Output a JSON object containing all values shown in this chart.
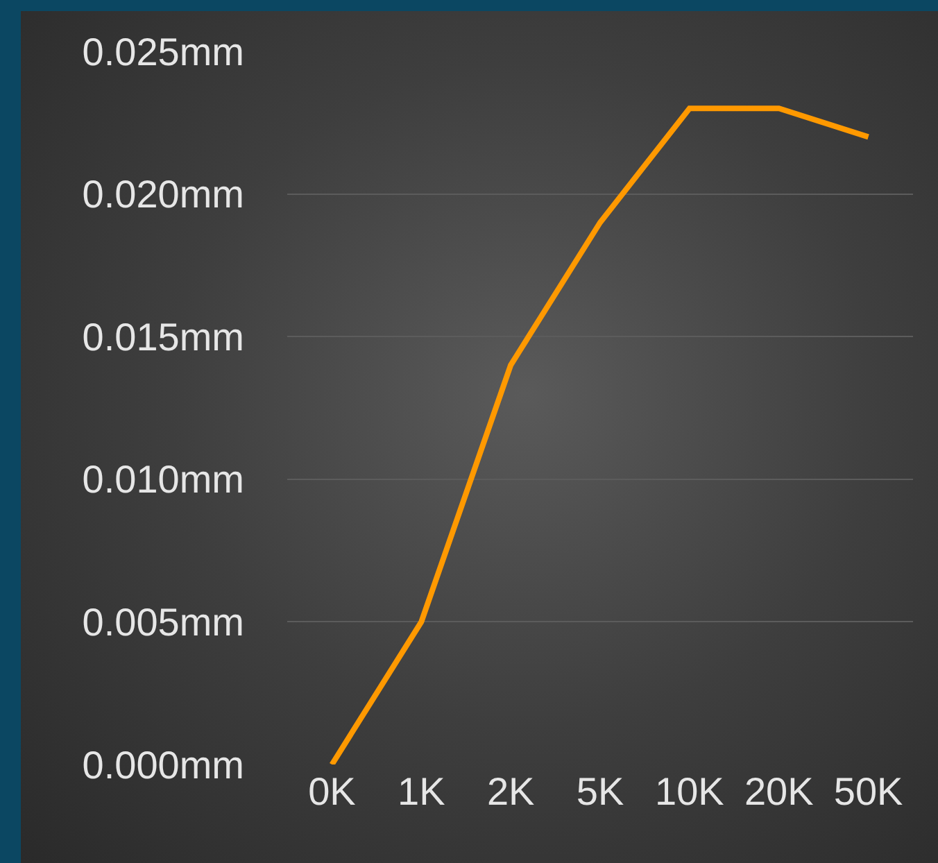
{
  "chart_data": {
    "type": "line",
    "categories": [
      "0K",
      "1K",
      "2K",
      "5K",
      "10K",
      "20K",
      "50K"
    ],
    "series": [
      {
        "color": "#ff9900",
        "values": [
          0,
          0.005,
          0.014,
          0.019,
          0.023,
          0.023,
          0.022
        ]
      }
    ],
    "ylim": [
      0,
      0.025
    ],
    "yticks": [
      {
        "value": 0,
        "label": "0.000mm"
      },
      {
        "value": 0.005,
        "label": "0.005mm"
      },
      {
        "value": 0.01,
        "label": "0.010mm"
      },
      {
        "value": 0.015,
        "label": "0.015mm"
      },
      {
        "value": 0.02,
        "label": "0.020mm"
      },
      {
        "value": 0.025,
        "label": "0.025mm"
      }
    ],
    "grid": "y",
    "legend": false,
    "marker": "none",
    "line_style": "solid"
  }
}
